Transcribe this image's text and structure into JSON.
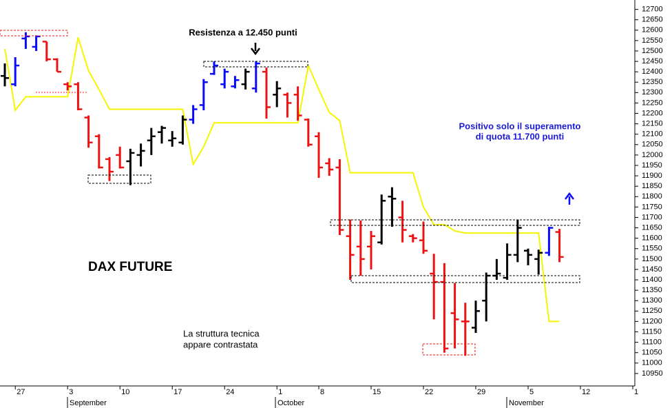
{
  "chart_data": {
    "type": "ohlc",
    "ylim": [
      10890,
      12745
    ],
    "yticks": [
      12700,
      12650,
      12600,
      12550,
      12500,
      12450,
      12400,
      12350,
      12300,
      12250,
      12200,
      12150,
      12100,
      12050,
      12000,
      11950,
      11900,
      11850,
      11800,
      11750,
      11700,
      11650,
      11600,
      11550,
      11500,
      11450,
      11400,
      11350,
      11300,
      11250,
      11200,
      11150,
      11100,
      11050,
      11000,
      10950
    ],
    "categories": [
      null,
      "27",
      null,
      null,
      null,
      null,
      "3",
      null,
      null,
      null,
      null,
      "10",
      null,
      null,
      null,
      null,
      "17",
      null,
      null,
      null,
      null,
      "24",
      null,
      null,
      null,
      null,
      "1",
      null,
      null,
      null,
      "8",
      null,
      null,
      null,
      null,
      "15",
      null,
      null,
      null,
      null,
      "22",
      null,
      null,
      null,
      null,
      "29",
      null,
      null,
      null,
      null,
      "5",
      null,
      null,
      null,
      null,
      "12",
      null,
      null,
      null,
      null,
      "1"
    ],
    "months": [
      "September",
      "October",
      "November"
    ],
    "ohlc": {
      "open": [
        12380,
        12340,
        12560,
        12520,
        12545,
        12460,
        12340,
        12340,
        12180,
        12090,
        11980,
        12000,
        11970,
        12000,
        12070,
        12110,
        12070,
        12060,
        12170,
        12240,
        12390,
        12340,
        12330,
        12340,
        12320,
        12400,
        12290,
        12290,
        12290,
        12170,
        12090,
        11960,
        11940,
        11610,
        11560,
        11560,
        11580,
        11800,
        11700,
        11610,
        11590,
        11430,
        11390,
        11240,
        11200,
        11170,
        11300,
        11420,
        11410,
        11520,
        11540,
        11500,
        11530,
        11630,
        null,
        null,
        null,
        null,
        null,
        null,
        null
      ],
      "high": [
        12440,
        12470,
        12590,
        12575,
        12545,
        12465,
        12350,
        12350,
        12190,
        12100,
        11990,
        12040,
        12030,
        12055,
        12130,
        12140,
        12115,
        12190,
        12240,
        12365,
        12450,
        12415,
        12380,
        12415,
        12450,
        12420,
        12355,
        12300,
        12330,
        12175,
        12110,
        11985,
        11980,
        11690,
        11685,
        11635,
        11810,
        11845,
        11780,
        11620,
        11680,
        11525,
        11480,
        11385,
        11290,
        11300,
        11435,
        11500,
        11575,
        11690,
        11550,
        11545,
        11655,
        11645,
        null,
        null,
        null,
        null,
        null,
        null,
        null
      ],
      "low": [
        12330,
        12330,
        12510,
        12500,
        12450,
        12400,
        12310,
        12215,
        12035,
        11935,
        11875,
        11935,
        11855,
        11945,
        12000,
        12055,
        12040,
        12050,
        12150,
        12215,
        12385,
        12320,
        12320,
        12315,
        12300,
        12175,
        12230,
        12180,
        12165,
        12040,
        11890,
        11900,
        11615,
        11400,
        11420,
        11450,
        11570,
        11655,
        11580,
        11580,
        11525,
        11210,
        11050,
        11070,
        11035,
        11145,
        11200,
        11400,
        11400,
        11485,
        11470,
        11425,
        11515,
        11485,
        null,
        null,
        null,
        null,
        null,
        null,
        null
      ],
      "close": [
        12370,
        12430,
        12570,
        12570,
        12460,
        12400,
        12330,
        12220,
        12060,
        11940,
        11920,
        11940,
        12010,
        12020,
        12090,
        12130,
        12080,
        12170,
        12220,
        12350,
        12430,
        12400,
        12360,
        12400,
        12440,
        12230,
        12320,
        12250,
        12190,
        12050,
        11940,
        11930,
        11640,
        11520,
        11500,
        11610,
        11780,
        11790,
        11640,
        11600,
        11540,
        11390,
        11070,
        11210,
        11200,
        11250,
        11420,
        11430,
        11520,
        11650,
        11520,
        11530,
        11650,
        11510,
        null,
        null,
        null,
        null,
        null,
        null,
        null
      ],
      "colors": [
        "#000000",
        "#0a0aff",
        "#0a0aff",
        "#0a0aff",
        "#ee1111",
        "#ee1111",
        "#ee1111",
        "#ee1111",
        "#ee1111",
        "#ee1111",
        "#ee1111",
        "#ee1111",
        "#000000",
        "#000000",
        "#000000",
        "#000000",
        "#000000",
        "#000000",
        "#0a0aff",
        "#0a0aff",
        "#0a0aff",
        "#0a0aff",
        "#0a0aff",
        "#000000",
        "#0a0aff",
        "#ee1111",
        "#000000",
        "#ee1111",
        "#ee1111",
        "#ee1111",
        "#ee1111",
        "#ee1111",
        "#ee1111",
        "#ee1111",
        "#ee1111",
        "#ee1111",
        "#000000",
        "#000000",
        "#ee1111",
        "#ee1111",
        "#ee1111",
        "#ee1111",
        "#ee1111",
        "#ee1111",
        "#ee1111",
        "#000000",
        "#000000",
        "#000000",
        "#000000",
        "#000000",
        "#000000",
        "#000000",
        "#0a0aff",
        "#ee1111",
        null,
        null,
        null,
        null,
        null,
        null,
        null
      ]
    },
    "line": {
      "color": "#f5f500",
      "values": [
        12510,
        12215,
        12280,
        12280,
        12280,
        12280,
        12280,
        12565,
        12405,
        12315,
        12220,
        12220,
        12220,
        12220,
        12220,
        12220,
        12220,
        12220,
        11955,
        12040,
        12155,
        12155,
        12155,
        12155,
        12155,
        12155,
        12155,
        12155,
        12155,
        12430,
        12315,
        12205,
        12165,
        11915,
        11915,
        11915,
        11915,
        11915,
        11915,
        11915,
        11750,
        11665,
        11665,
        11635,
        11625,
        11625,
        11625,
        11625,
        11625,
        11625,
        11625,
        11625,
        11200,
        11200,
        null,
        null,
        null,
        null,
        null,
        null,
        null
      ]
    },
    "annotations": [
      "Resistenza a 12.450 punti",
      "Positivo solo il superamento",
      "di quota 11.700 punti",
      "DAX FUTURE",
      "La struttura tecnica",
      "appare contrastata"
    ]
  }
}
